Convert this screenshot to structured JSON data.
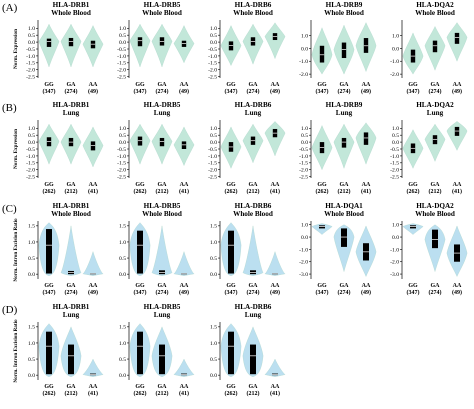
{
  "figure": {
    "row_labels": [
      "(A)",
      "(B)",
      "(C)",
      "(D)"
    ],
    "axis_labels": {
      "expression": "Norm. Expression",
      "intron": "Norm. Intron Excision Ratio"
    },
    "colors": {
      "violin_expression": "#bfe6d8",
      "violin_intron": "#b8def0",
      "box": "#000000",
      "axis": "#000000"
    }
  },
  "chart_data": [
    {
      "type": "violin",
      "row": "A",
      "gene": "HLA-DRB1",
      "tissue": "Whole Blood",
      "ylabel": "Norm. Expression",
      "ylim": [
        -2.6,
        1.6
      ],
      "yticks": [
        1.0,
        0.5,
        0.0,
        -0.5,
        -1.0,
        -1.5,
        -2.0,
        -2.5
      ],
      "yticklabels": [
        "1.0",
        "0.5",
        "0.0",
        "-0.5",
        "-1.0",
        "-1.5",
        "-2.0",
        "-2.5"
      ],
      "categories": [
        "GG",
        "GA",
        "AA"
      ],
      "counts": [
        "(347)",
        "(274)",
        "(49)"
      ],
      "groups": [
        {
          "max": 1.3,
          "q3": 0.25,
          "median": 0.05,
          "q1": -0.35,
          "min": -1.8
        },
        {
          "max": 1.3,
          "q3": 0.3,
          "median": 0.05,
          "q1": -0.3,
          "min": -1.8
        },
        {
          "max": 1.2,
          "q3": 0.1,
          "median": -0.15,
          "q1": -0.45,
          "min": -1.8
        }
      ]
    },
    {
      "type": "violin",
      "row": "A",
      "gene": "HLA-DRB5",
      "tissue": "Whole Blood",
      "ylim": [
        -2.6,
        1.6
      ],
      "yticks": [
        1.0,
        0.5,
        0.0,
        -0.5,
        -1.0,
        -1.5,
        -2.0,
        -2.5
      ],
      "yticklabels": [
        "1.0",
        "0.5",
        "0.0",
        "-0.5",
        "-1.0",
        "-1.5",
        "-2.0",
        "-2.5"
      ],
      "categories": [
        "GG",
        "GA",
        "AA"
      ],
      "counts": [
        "(347)",
        "(274)",
        "(49)"
      ],
      "groups": [
        {
          "max": 1.3,
          "q3": 0.35,
          "median": 0.1,
          "q1": -0.3,
          "min": -1.8
        },
        {
          "max": 1.3,
          "q3": 0.35,
          "median": 0.05,
          "q1": -0.25,
          "min": -1.8
        },
        {
          "max": 1.2,
          "q3": 0.1,
          "median": -0.1,
          "q1": -0.35,
          "min": -1.5
        }
      ]
    },
    {
      "type": "violin",
      "row": "A",
      "gene": "HLA-DRB6",
      "tissue": "Whole Blood",
      "ylim": [
        -2.6,
        1.6
      ],
      "yticks": [
        1.0,
        0.5,
        0.0,
        -0.5,
        -1.0,
        -1.5,
        -2.0,
        -2.5
      ],
      "yticklabels": [
        "1.0",
        "0.5",
        "0.0",
        "-0.5",
        "-1.0",
        "-1.5",
        "-2.0",
        "-2.5"
      ],
      "categories": [
        "GG",
        "GA",
        "AA"
      ],
      "counts": [
        "(347)",
        "(274)",
        "(49)"
      ],
      "groups": [
        {
          "max": 1.2,
          "q3": 0.05,
          "median": -0.25,
          "q1": -0.6,
          "min": -1.7
        },
        {
          "max": 1.3,
          "q3": 0.35,
          "median": 0.05,
          "q1": -0.25,
          "min": -1.6
        },
        {
          "max": 1.4,
          "q3": 0.65,
          "median": 0.4,
          "q1": 0.15,
          "min": -1.2
        }
      ]
    },
    {
      "type": "violin",
      "row": "A",
      "gene": "HLA-DRB9",
      "tissue": "Whole Blood",
      "ylim": [
        -2.3,
        2.2
      ],
      "yticks": [
        1.0,
        0.0,
        -1.0,
        -2.0
      ],
      "yticklabels": [
        "1.0",
        "0.0",
        "-1.0",
        "-2.0"
      ],
      "categories": [
        "GG",
        "GA",
        "AA"
      ],
      "counts": [
        "(347)",
        "(274)",
        "(49)"
      ],
      "groups": [
        {
          "max": 1.6,
          "q3": 0.2,
          "median": -0.5,
          "q1": -1.1,
          "min": -2.0
        },
        {
          "max": 1.8,
          "q3": 0.45,
          "median": -0.1,
          "q1": -0.75,
          "min": -2.0
        },
        {
          "max": 2.0,
          "q3": 0.8,
          "median": 0.2,
          "q1": -0.35,
          "min": -1.8
        }
      ]
    },
    {
      "type": "violin",
      "row": "A",
      "gene": "HLA-DQA2",
      "tissue": "Whole Blood",
      "ylim": [
        -2.3,
        2.2
      ],
      "yticks": [
        1.0,
        0.0,
        -1.0,
        -2.0
      ],
      "yticklabels": [
        "1.0",
        "0.0",
        "-1.0",
        "-2.0"
      ],
      "categories": [
        "GG",
        "GA",
        "AA"
      ],
      "counts": [
        "(347)",
        "(274)",
        "(49)"
      ],
      "groups": [
        {
          "max": 1.2,
          "q3": -0.1,
          "median": -0.6,
          "q1": -1.1,
          "min": -2.0
        },
        {
          "max": 1.7,
          "q3": 0.6,
          "median": 0.2,
          "q1": -0.3,
          "min": -1.7
        },
        {
          "max": 2.0,
          "q3": 1.2,
          "median": 0.85,
          "q1": 0.35,
          "min": -1.0
        }
      ]
    },
    {
      "type": "violin",
      "row": "B",
      "gene": "HLA-DRB1",
      "tissue": "Lung",
      "ylabel": "Norm. Expression",
      "ylim": [
        -2.6,
        1.6
      ],
      "yticks": [
        1.0,
        0.5,
        0.0,
        -0.5,
        -1.0,
        -1.5,
        -2.0,
        -2.5
      ],
      "yticklabels": [
        "1.0",
        "0.5",
        "0.0",
        "-0.5",
        "-1.0",
        "-1.5",
        "-2.0",
        "-2.5"
      ],
      "categories": [
        "GG",
        "GA",
        "AA"
      ],
      "counts": [
        "(262)",
        "(212)",
        "(41)"
      ],
      "groups": [
        {
          "max": 1.3,
          "q3": 0.35,
          "median": 0.05,
          "q1": -0.3,
          "min": -1.6
        },
        {
          "max": 1.3,
          "q3": 0.3,
          "median": 0.0,
          "q1": -0.3,
          "min": -1.6
        },
        {
          "max": 1.1,
          "q3": 0.05,
          "median": -0.25,
          "q1": -0.6,
          "min": -1.8
        }
      ]
    },
    {
      "type": "violin",
      "row": "B",
      "gene": "HLA-DRB5",
      "tissue": "Lung",
      "ylim": [
        -2.6,
        1.6
      ],
      "yticks": [
        1.0,
        0.5,
        0.0,
        -0.5,
        -1.0,
        -1.5,
        -2.0,
        -2.5
      ],
      "yticklabels": [
        "1.0",
        "0.5",
        "0.0",
        "-0.5",
        "-1.0",
        "-1.5",
        "-2.0",
        "-2.5"
      ],
      "categories": [
        "GG",
        "GA",
        "AA"
      ],
      "counts": [
        "(262)",
        "(212)",
        "(41)"
      ],
      "groups": [
        {
          "max": 1.3,
          "q3": 0.4,
          "median": 0.1,
          "q1": -0.25,
          "min": -1.6
        },
        {
          "max": 1.3,
          "q3": 0.3,
          "median": 0.05,
          "q1": -0.3,
          "min": -1.6
        },
        {
          "max": 1.1,
          "q3": 0.05,
          "median": -0.2,
          "q1": -0.5,
          "min": -1.7
        }
      ]
    },
    {
      "type": "violin",
      "row": "B",
      "gene": "HLA-DRB6",
      "tissue": "Lung",
      "ylim": [
        -2.6,
        1.6
      ],
      "yticks": [
        1.0,
        0.5,
        0.0,
        -0.5,
        -1.0,
        -1.5,
        -2.0,
        -2.5
      ],
      "yticklabels": [
        "1.0",
        "0.5",
        "0.0",
        "-0.5",
        "-1.0",
        "-1.5",
        "-2.0",
        "-2.5"
      ],
      "categories": [
        "GG",
        "GA",
        "AA"
      ],
      "counts": [
        "(262)",
        "(212)",
        "(41)"
      ],
      "groups": [
        {
          "max": 1.1,
          "q3": 0.0,
          "median": -0.35,
          "q1": -0.7,
          "min": -1.9
        },
        {
          "max": 1.3,
          "q3": 0.4,
          "median": 0.1,
          "q1": -0.2,
          "min": -1.5
        },
        {
          "max": 1.5,
          "q3": 0.95,
          "median": 0.65,
          "q1": 0.35,
          "min": -1.0
        }
      ]
    },
    {
      "type": "violin",
      "row": "B",
      "gene": "HLA-DRB9",
      "tissue": "Lung",
      "ylim": [
        -2.6,
        1.6
      ],
      "yticks": [
        1.0,
        0.5,
        0.0,
        -0.5,
        -1.0,
        -1.5,
        -2.0,
        -2.5
      ],
      "yticklabels": [
        "1.0",
        "0.5",
        "0.0",
        "-0.5",
        "-1.0",
        "-1.5",
        "-2.0",
        "-2.5"
      ],
      "categories": [
        "GG",
        "GA",
        "AA"
      ],
      "counts": [
        "(262)",
        "(212)",
        "(41)"
      ],
      "groups": [
        {
          "max": 1.2,
          "q3": 0.0,
          "median": -0.4,
          "q1": -0.8,
          "min": -2.0
        },
        {
          "max": 1.3,
          "q3": 0.3,
          "median": 0.0,
          "q1": -0.4,
          "min": -1.9
        },
        {
          "max": 1.4,
          "q3": 0.7,
          "median": 0.3,
          "q1": -0.2,
          "min": -1.6
        }
      ]
    },
    {
      "type": "violin",
      "row": "B",
      "gene": "HLA-DQA2",
      "tissue": "Lung",
      "ylim": [
        -2.6,
        1.6
      ],
      "yticks": [
        1.0,
        0.5,
        0.0,
        -0.5,
        -1.0,
        -1.5,
        -2.0,
        -2.5
      ],
      "yticklabels": [
        "1.0",
        "0.5",
        "0.0",
        "-0.5",
        "-1.0",
        "-1.5",
        "-2.0",
        "-2.5"
      ],
      "categories": [
        "GG",
        "GA",
        "AA"
      ],
      "counts": [
        "(262)",
        "(212)",
        "(41)"
      ],
      "groups": [
        {
          "max": 0.9,
          "q3": -0.1,
          "median": -0.45,
          "q1": -0.8,
          "min": -1.9
        },
        {
          "max": 1.3,
          "q3": 0.5,
          "median": 0.2,
          "q1": -0.15,
          "min": -1.4
        },
        {
          "max": 1.5,
          "q3": 1.1,
          "median": 0.8,
          "q1": 0.45,
          "min": -0.6
        }
      ]
    },
    {
      "type": "violin",
      "row": "C",
      "gene": "HLA-DRB1",
      "tissue": "Whole Blood",
      "ylabel": "Norm. Intron Excision Ratio",
      "ylim": [
        -0.15,
        1.65
      ],
      "yticks": [
        1.5,
        1.0,
        0.5,
        0.0
      ],
      "yticklabels": [
        "1.5",
        "1.0",
        "0.5",
        "0.0"
      ],
      "categories": [
        "GG",
        "GA",
        "AA"
      ],
      "counts": [
        "(347)",
        "(274)",
        "(49)"
      ],
      "groups": [
        {
          "max": 1.6,
          "q3": 1.4,
          "median": 0.9,
          "q1": 0.02,
          "min": -0.05
        },
        {
          "max": 1.5,
          "q3": 0.1,
          "median": 0.05,
          "q1": 0.0,
          "min": -0.05
        },
        {
          "max": 0.7,
          "q3": 0.03,
          "median": 0.01,
          "q1": 0.0,
          "min": -0.05
        }
      ]
    },
    {
      "type": "violin",
      "row": "C",
      "gene": "HLA-DRB5",
      "tissue": "Whole Blood",
      "ylim": [
        -0.15,
        1.65
      ],
      "yticks": [
        1.5,
        1.0,
        0.5,
        0.0
      ],
      "yticklabels": [
        "1.5",
        "1.0",
        "0.5",
        "0.0"
      ],
      "categories": [
        "GG",
        "GA",
        "AA"
      ],
      "counts": [
        "(347)",
        "(274)",
        "(49)"
      ],
      "groups": [
        {
          "max": 1.6,
          "q3": 1.35,
          "median": 0.9,
          "q1": 0.02,
          "min": -0.05
        },
        {
          "max": 1.5,
          "q3": 0.12,
          "median": 0.05,
          "q1": 0.0,
          "min": -0.05
        },
        {
          "max": 0.7,
          "q3": 0.03,
          "median": 0.01,
          "q1": 0.0,
          "min": -0.05
        }
      ]
    },
    {
      "type": "violin",
      "row": "C",
      "gene": "HLA-DRB6",
      "tissue": "Whole Blood",
      "ylim": [
        -0.15,
        1.65
      ],
      "yticks": [
        1.5,
        1.0,
        0.5,
        0.0
      ],
      "yticklabels": [
        "1.5",
        "1.0",
        "0.5",
        "0.0"
      ],
      "categories": [
        "GG",
        "GA",
        "AA"
      ],
      "counts": [
        "(347)",
        "(274)",
        "(49)"
      ],
      "groups": [
        {
          "max": 1.6,
          "q3": 1.35,
          "median": 0.9,
          "q1": 0.02,
          "min": -0.05
        },
        {
          "max": 1.5,
          "q3": 0.12,
          "median": 0.05,
          "q1": 0.0,
          "min": -0.05
        },
        {
          "max": 0.7,
          "q3": 0.03,
          "median": 0.01,
          "q1": 0.0,
          "min": -0.05
        }
      ]
    },
    {
      "type": "violin",
      "row": "C",
      "gene": "HLA-DQA1",
      "tissue": "Whole Blood",
      "ylim": [
        -3.4,
        1.3
      ],
      "yticks": [
        1.0,
        0.0,
        -1.0,
        -2.0,
        -3.0
      ],
      "yticklabels": [
        "1.0",
        "0.0",
        "-1.0",
        "-2.0",
        "-3.0"
      ],
      "categories": [
        "GG",
        "GA",
        "AA"
      ],
      "counts": [
        "(347)",
        "(274)",
        "(49)"
      ],
      "groups": [
        {
          "max": 1.1,
          "q3": 0.95,
          "median": 0.85,
          "q1": 0.7,
          "min": 0.2
        },
        {
          "max": 1.0,
          "q3": 0.7,
          "median": 0.0,
          "q1": -0.8,
          "min": -2.8
        },
        {
          "max": 0.9,
          "q3": -0.5,
          "median": -1.2,
          "q1": -1.9,
          "min": -3.2
        }
      ]
    },
    {
      "type": "violin",
      "row": "C",
      "gene": "HLA-DQA2",
      "tissue": "Whole Blood",
      "ylim": [
        -3.4,
        1.3
      ],
      "yticks": [
        1.0,
        0.0,
        -1.0,
        -2.0,
        -3.0
      ],
      "yticklabels": [
        "1.0",
        "0.0",
        "-1.0",
        "-2.0",
        "-3.0"
      ],
      "categories": [
        "GG",
        "GA",
        "AA"
      ],
      "counts": [
        "(347)",
        "(274)",
        "(49)"
      ],
      "groups": [
        {
          "max": 1.1,
          "q3": 0.95,
          "median": 0.85,
          "q1": 0.7,
          "min": 0.2
        },
        {
          "max": 1.0,
          "q3": 0.6,
          "median": -0.2,
          "q1": -0.9,
          "min": -2.8
        },
        {
          "max": 0.9,
          "q3": -0.6,
          "median": -1.3,
          "q1": -2.0,
          "min": -3.2
        }
      ]
    },
    {
      "type": "violin",
      "row": "D",
      "gene": "HLA-DRB1",
      "tissue": "Lung",
      "ylabel": "Norm. Intron Excision Ratio",
      "ylim": [
        -0.15,
        1.65
      ],
      "yticks": [
        1.5,
        1.0,
        0.5,
        0.0
      ],
      "yticklabels": [
        "1.5",
        "1.0",
        "0.5",
        "0.0"
      ],
      "categories": [
        "GG",
        "GA",
        "AA"
      ],
      "counts": [
        "(262)",
        "(212)",
        "(41)"
      ],
      "groups": [
        {
          "max": 1.6,
          "q3": 1.35,
          "median": 0.9,
          "q1": 0.03,
          "min": -0.05
        },
        {
          "max": 1.5,
          "q3": 0.95,
          "median": 0.6,
          "q1": 0.03,
          "min": -0.05
        },
        {
          "max": 0.5,
          "q3": 0.05,
          "median": 0.02,
          "q1": 0.0,
          "min": -0.05
        }
      ]
    },
    {
      "type": "violin",
      "row": "D",
      "gene": "HLA-DRB5",
      "tissue": "Lung",
      "ylim": [
        -0.15,
        1.65
      ],
      "yticks": [
        1.5,
        1.0,
        0.5,
        0.0
      ],
      "yticklabels": [
        "1.5",
        "1.0",
        "0.5",
        "0.0"
      ],
      "categories": [
        "GG",
        "GA",
        "AA"
      ],
      "counts": [
        "(262)",
        "(212)",
        "(41)"
      ],
      "groups": [
        {
          "max": 1.6,
          "q3": 1.35,
          "median": 0.9,
          "q1": 0.03,
          "min": -0.05
        },
        {
          "max": 1.5,
          "q3": 0.95,
          "median": 0.6,
          "q1": 0.03,
          "min": -0.05
        },
        {
          "max": 0.5,
          "q3": 0.05,
          "median": 0.02,
          "q1": 0.0,
          "min": -0.05
        }
      ]
    },
    {
      "type": "violin",
      "row": "D",
      "gene": "HLA-DRB6",
      "tissue": "Lung",
      "ylim": [
        -0.15,
        1.65
      ],
      "yticks": [
        1.5,
        1.0,
        0.5,
        0.0
      ],
      "yticklabels": [
        "1.5",
        "1.0",
        "0.5",
        "0.0"
      ],
      "categories": [
        "GG",
        "GA",
        "AA"
      ],
      "counts": [
        "(262)",
        "(212)",
        "(41)"
      ],
      "groups": [
        {
          "max": 1.6,
          "q3": 1.35,
          "median": 0.9,
          "q1": 0.03,
          "min": -0.05
        },
        {
          "max": 1.5,
          "q3": 0.95,
          "median": 0.6,
          "q1": 0.03,
          "min": -0.05
        },
        {
          "max": 0.5,
          "q3": 0.05,
          "median": 0.02,
          "q1": 0.0,
          "min": -0.05
        }
      ]
    }
  ]
}
